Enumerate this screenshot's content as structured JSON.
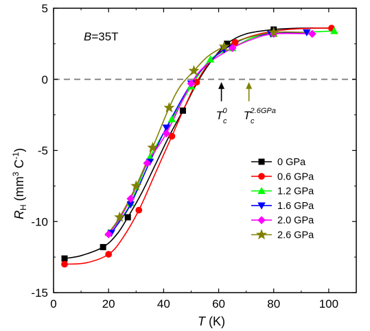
{
  "chart_data": {
    "type": "line",
    "title": "",
    "xlabel_main": "T",
    "xlabel_unit": " (K)",
    "ylabel_main": "R",
    "ylabel_sub": "H",
    "ylabel_unit_pre": " (mm",
    "ylabel_unit_sup1": "3",
    "ylabel_unit_mid": " C",
    "ylabel_unit_sup2": "-1",
    "ylabel_unit_post": ")",
    "xlim": [
      0,
      110
    ],
    "ylim": [
      -15,
      5
    ],
    "xticks": [
      0,
      20,
      40,
      60,
      80,
      100
    ],
    "yticks": [
      -15,
      -10,
      -5,
      0,
      5
    ],
    "grid": false,
    "legend_position": "lower-right",
    "annotation_field_italic": "B",
    "annotation_field_value": "=35T",
    "zero_line": {
      "y": 0,
      "color": "#888888",
      "style": "dashed"
    },
    "arrows": [
      {
        "x": 61,
        "label_main": "T",
        "label_sub": "c",
        "label_sup": "0",
        "color": "#000000"
      },
      {
        "x": 71,
        "label_main": "T",
        "label_sub": "c",
        "label_sup": "2.6GPa",
        "color": "#808000"
      }
    ],
    "series": [
      {
        "name": "0 GPa",
        "color": "#000000",
        "marker": "square",
        "points": [
          [
            4,
            -12.6
          ],
          [
            18,
            -11.8
          ],
          [
            27,
            -9.7
          ],
          [
            47,
            -2.2
          ],
          [
            63,
            2.5
          ],
          [
            80,
            3.5
          ]
        ],
        "curve": [
          [
            4,
            -12.6
          ],
          [
            10,
            -12.4
          ],
          [
            18,
            -11.8
          ],
          [
            23,
            -10.9
          ],
          [
            27,
            -9.7
          ],
          [
            32,
            -8.0
          ],
          [
            37,
            -6.0
          ],
          [
            42,
            -4.0
          ],
          [
            47,
            -2.2
          ],
          [
            52,
            -0.3
          ],
          [
            57,
            1.2
          ],
          [
            63,
            2.5
          ],
          [
            70,
            3.2
          ],
          [
            80,
            3.5
          ],
          [
            90,
            3.6
          ],
          [
            100,
            3.6
          ]
        ]
      },
      {
        "name": "0.6 GPa",
        "color": "#ff0000",
        "marker": "circle",
        "points": [
          [
            4,
            -13.0
          ],
          [
            20,
            -12.3
          ],
          [
            31,
            -9.2
          ],
          [
            43,
            -4.0
          ],
          [
            52,
            -0.2
          ],
          [
            66,
            2.6
          ],
          [
            101,
            3.6
          ]
        ],
        "curve": [
          [
            4,
            -13.0
          ],
          [
            12,
            -12.9
          ],
          [
            20,
            -12.3
          ],
          [
            25,
            -11.2
          ],
          [
            31,
            -9.2
          ],
          [
            37,
            -6.6
          ],
          [
            43,
            -4.0
          ],
          [
            48,
            -1.8
          ],
          [
            52,
            -0.2
          ],
          [
            58,
            1.5
          ],
          [
            66,
            2.6
          ],
          [
            75,
            3.2
          ],
          [
            85,
            3.5
          ],
          [
            95,
            3.6
          ],
          [
            101,
            3.6
          ]
        ]
      },
      {
        "name": "1.2 GPa",
        "color": "#00ff00",
        "marker": "triangle-up",
        "points": [
          [
            20,
            -10.8
          ],
          [
            28,
            -8.7
          ],
          [
            35,
            -5.5
          ],
          [
            43,
            -2.8
          ],
          [
            50,
            -0.5
          ],
          [
            57,
            1.4
          ],
          [
            65,
            2.2
          ],
          [
            80,
            3.2
          ],
          [
            102,
            3.4
          ]
        ],
        "curve": [
          [
            20,
            -10.8
          ],
          [
            24,
            -9.9
          ],
          [
            28,
            -8.7
          ],
          [
            35,
            -5.5
          ],
          [
            43,
            -2.8
          ],
          [
            50,
            -0.5
          ],
          [
            57,
            1.4
          ],
          [
            65,
            2.2
          ],
          [
            72,
            2.9
          ],
          [
            80,
            3.2
          ],
          [
            90,
            3.3
          ],
          [
            102,
            3.4
          ]
        ]
      },
      {
        "name": "1.6 GPa",
        "color": "#0000ff",
        "marker": "triangle-down",
        "points": [
          [
            21,
            -10.8
          ],
          [
            28,
            -8.8
          ],
          [
            35,
            -5.8
          ],
          [
            41,
            -3.4
          ],
          [
            50,
            -0.3
          ],
          [
            62,
            2.1
          ],
          [
            79,
            3.2
          ],
          [
            92,
            3.3
          ]
        ],
        "curve": [
          [
            21,
            -10.8
          ],
          [
            24,
            -10.0
          ],
          [
            28,
            -8.8
          ],
          [
            35,
            -5.8
          ],
          [
            41,
            -3.4
          ],
          [
            50,
            -0.3
          ],
          [
            56,
            1.1
          ],
          [
            62,
            2.1
          ],
          [
            70,
            2.9
          ],
          [
            79,
            3.2
          ],
          [
            92,
            3.3
          ]
        ]
      },
      {
        "name": "2.0 GPa",
        "color": "#ff00ff",
        "marker": "diamond",
        "points": [
          [
            20,
            -10.9
          ],
          [
            28,
            -8.4
          ],
          [
            34,
            -5.9
          ],
          [
            41,
            -3.8
          ],
          [
            50,
            -0.3
          ],
          [
            65,
            2.2
          ],
          [
            80,
            3.2
          ],
          [
            94,
            3.2
          ]
        ],
        "curve": [
          [
            20,
            -10.9
          ],
          [
            24,
            -9.8
          ],
          [
            28,
            -8.4
          ],
          [
            34,
            -5.9
          ],
          [
            41,
            -3.8
          ],
          [
            50,
            -0.3
          ],
          [
            56,
            1.1
          ],
          [
            65,
            2.2
          ],
          [
            72,
            2.8
          ],
          [
            80,
            3.2
          ],
          [
            94,
            3.2
          ]
        ]
      },
      {
        "name": "2.6 GPa",
        "color": "#808000",
        "marker": "star",
        "points": [
          [
            24,
            -9.7
          ],
          [
            30,
            -7.5
          ],
          [
            36,
            -4.8
          ],
          [
            42,
            -2.0
          ],
          [
            51,
            0.6
          ],
          [
            62,
            2.3
          ],
          [
            80,
            3.3
          ]
        ],
        "curve": [
          [
            20,
            -10.8
          ],
          [
            24,
            -9.7
          ],
          [
            30,
            -7.5
          ],
          [
            36,
            -4.8
          ],
          [
            42,
            -2.0
          ],
          [
            46,
            -0.5
          ],
          [
            51,
            0.6
          ],
          [
            56,
            1.6
          ],
          [
            62,
            2.3
          ],
          [
            70,
            2.9
          ],
          [
            80,
            3.3
          ],
          [
            92,
            3.3
          ]
        ]
      }
    ]
  }
}
